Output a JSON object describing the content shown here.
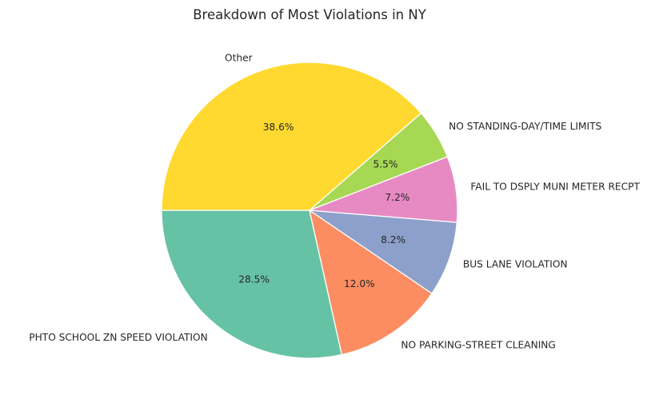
{
  "chart_data": {
    "type": "pie",
    "title": "Breakdown of Most Violations in NY",
    "start_angle_deg": 180,
    "direction": "counterclockwise",
    "slices": [
      {
        "label": "PHTO SCHOOL ZN SPEED VIOLATION",
        "value": 28.5,
        "pct_label": "28.5%",
        "color": "#66c2a5"
      },
      {
        "label": "NO PARKING-STREET CLEANING",
        "value": 12.0,
        "pct_label": "12.0%",
        "color": "#fc8d62"
      },
      {
        "label": "BUS LANE VIOLATION",
        "value": 8.2,
        "pct_label": "8.2%",
        "color": "#8da0cb"
      },
      {
        "label": "FAIL TO DSPLY MUNI METER RECPT",
        "value": 7.2,
        "pct_label": "7.2%",
        "color": "#e78ac3"
      },
      {
        "label": "NO STANDING-DAY/TIME LIMITS",
        "value": 5.5,
        "pct_label": "5.5%",
        "color": "#a6d854"
      },
      {
        "label": "Other",
        "value": 38.6,
        "pct_label": "38.6%",
        "color": "#ffd92f"
      }
    ]
  }
}
